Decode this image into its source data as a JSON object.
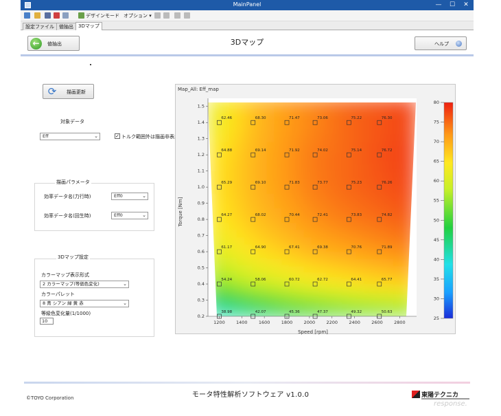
{
  "window": {
    "title": "MainPanel",
    "min": "—",
    "max": "☐",
    "close": "✕"
  },
  "toolbar": {
    "design_mode": "デザインモード",
    "options": "オプション ▾"
  },
  "tabs": [
    {
      "label": "設定ファイル",
      "active": false
    },
    {
      "label": "値抽出",
      "active": false
    },
    {
      "label": "3Dマップ",
      "active": true
    }
  ],
  "header": {
    "back_label": "値抽出",
    "title": "3Dマップ",
    "help_label": "ヘルプ"
  },
  "left": {
    "draw_button": "描画更新",
    "target_data_label": "対象データ",
    "target_select": "Eff",
    "torque_checkbox_label": "トルク範囲外は描画非表示",
    "torque_checked": true,
    "params_group_title": "描画パラメータ",
    "eff_data1_label": "効率データ名(力行時)",
    "eff_data1_value": "Eff0",
    "eff_data2_label": "効率データ名(回生時)",
    "eff_data2_value": "Eff0",
    "settings_group_title": "3Dマップ設定",
    "colormap_style_label": "カラーマップ表示形式",
    "colormap_style_value": "2 カラーマップ(等価色変化)",
    "palette_label": "カラーパレット",
    "palette_value": "8 青 シアン 緑 黄 赤",
    "step_label": "等級色変化量(1/1000)",
    "step_value": "10"
  },
  "chart_data": {
    "type": "heatmap",
    "title": "Map_All: Eff_map",
    "xlabel": "Speed [rpm]",
    "ylabel": "Torque [Nm]",
    "xlim": [
      1100,
      2950
    ],
    "ylim": [
      0.2,
      1.55
    ],
    "x_ticks": [
      1200,
      1400,
      1600,
      1800,
      2000,
      2200,
      2400,
      2600,
      2800
    ],
    "y_ticks": [
      0.2,
      0.3,
      0.4,
      0.5,
      0.6,
      0.7,
      0.8,
      0.9,
      1.0,
      1.1,
      1.2,
      1.3,
      1.4,
      1.5
    ],
    "colorbar": {
      "min": 25,
      "max": 80,
      "ticks": [
        25,
        30,
        35,
        40,
        45,
        50,
        55,
        60,
        65,
        70,
        75,
        80
      ]
    },
    "points": [
      {
        "x": 1200,
        "y": 1.4,
        "v": 62.46
      },
      {
        "x": 1500,
        "y": 1.4,
        "v": 68.3
      },
      {
        "x": 1800,
        "y": 1.4,
        "v": 71.47
      },
      {
        "x": 2050,
        "y": 1.4,
        "v": 73.06
      },
      {
        "x": 2350,
        "y": 1.4,
        "v": 75.22
      },
      {
        "x": 2620,
        "y": 1.4,
        "v": 76.3
      },
      {
        "x": 1200,
        "y": 1.2,
        "v": 64.88
      },
      {
        "x": 1500,
        "y": 1.2,
        "v": 69.14
      },
      {
        "x": 1800,
        "y": 1.2,
        "v": 71.92
      },
      {
        "x": 2050,
        "y": 1.2,
        "v": 74.02
      },
      {
        "x": 2350,
        "y": 1.2,
        "v": 75.14
      },
      {
        "x": 2620,
        "y": 1.2,
        "v": 76.72
      },
      {
        "x": 1200,
        "y": 1.0,
        "v": 65.29
      },
      {
        "x": 1500,
        "y": 1.0,
        "v": 69.1
      },
      {
        "x": 1800,
        "y": 1.0,
        "v": 71.83
      },
      {
        "x": 2050,
        "y": 1.0,
        "v": 73.77
      },
      {
        "x": 2350,
        "y": 1.0,
        "v": 75.23
      },
      {
        "x": 2620,
        "y": 1.0,
        "v": 76.26
      },
      {
        "x": 1200,
        "y": 0.8,
        "v": 64.27
      },
      {
        "x": 1500,
        "y": 0.8,
        "v": 68.02
      },
      {
        "x": 1800,
        "y": 0.8,
        "v": 70.44
      },
      {
        "x": 2050,
        "y": 0.8,
        "v": 72.41
      },
      {
        "x": 2350,
        "y": 0.8,
        "v": 73.83
      },
      {
        "x": 2620,
        "y": 0.8,
        "v": 74.82
      },
      {
        "x": 1200,
        "y": 0.6,
        "v": 61.17
      },
      {
        "x": 1500,
        "y": 0.6,
        "v": 64.9
      },
      {
        "x": 1800,
        "y": 0.6,
        "v": 67.41
      },
      {
        "x": 2050,
        "y": 0.6,
        "v": 69.38
      },
      {
        "x": 2350,
        "y": 0.6,
        "v": 70.76
      },
      {
        "x": 2620,
        "y": 0.6,
        "v": 71.89
      },
      {
        "x": 1200,
        "y": 0.4,
        "v": 54.24
      },
      {
        "x": 1500,
        "y": 0.4,
        "v": 58.06
      },
      {
        "x": 1800,
        "y": 0.4,
        "v": 60.72
      },
      {
        "x": 2050,
        "y": 0.4,
        "v": 62.72
      },
      {
        "x": 2350,
        "y": 0.4,
        "v": 64.41
      },
      {
        "x": 2620,
        "y": 0.4,
        "v": 65.77
      },
      {
        "x": 1200,
        "y": 0.2,
        "v": 38.98
      },
      {
        "x": 1500,
        "y": 0.2,
        "v": 42.07
      },
      {
        "x": 1800,
        "y": 0.2,
        "v": 45.36
      },
      {
        "x": 2050,
        "y": 0.2,
        "v": 47.37
      },
      {
        "x": 2350,
        "y": 0.2,
        "v": 49.32
      },
      {
        "x": 2620,
        "y": 0.2,
        "v": 50.63
      }
    ]
  },
  "footer": {
    "copyright": "©TOYO Corporation",
    "software_name": "モータ特性解析ソフトウェア v1.0.0",
    "logo_text": "東陽テクニカ",
    "watermark": "response."
  }
}
